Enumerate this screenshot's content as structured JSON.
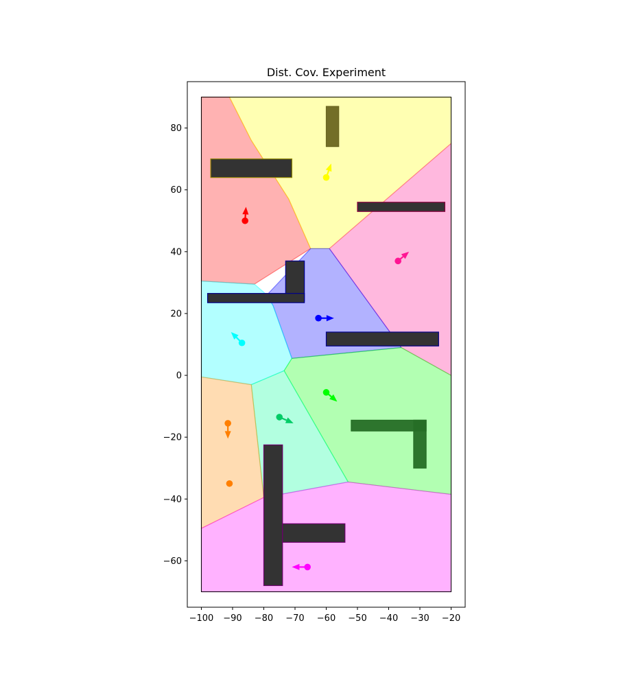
{
  "chart_data": {
    "type": "scatter",
    "title": "Dist. Cov. Experiment",
    "xlabel": "",
    "ylabel": "",
    "xlim": [
      -104.5,
      -15.5
    ],
    "ylim": [
      -75,
      95
    ],
    "xticks": [
      -100,
      -90,
      -80,
      -70,
      -60,
      -50,
      -40,
      -30,
      -20
    ],
    "yticks": [
      -60,
      -40,
      -20,
      0,
      20,
      40,
      60,
      80
    ],
    "x_tick_labels": [
      "−100",
      "−90",
      "−80",
      "−70",
      "−60",
      "−50",
      "−40",
      "−30",
      "−20"
    ],
    "y_tick_labels": [
      "−60",
      "−40",
      "−20",
      "0",
      "20",
      "40",
      "60",
      "80"
    ],
    "grid": false,
    "legend": "none",
    "boundary": [
      [
        -100,
        -70
      ],
      [
        -20,
        -70
      ],
      [
        -20,
        90
      ],
      [
        -100,
        90
      ]
    ],
    "regions": [
      {
        "color": "#ff0000",
        "agent": "red",
        "points": [
          [
            -100,
            90
          ],
          [
            -91,
            90
          ],
          [
            -84,
            76
          ],
          [
            -72,
            57
          ],
          [
            -65,
            41
          ],
          [
            -83,
            29.5
          ],
          [
            -100,
            30.5
          ]
        ]
      },
      {
        "color": "#ffff00",
        "agent": "yellow",
        "points": [
          [
            -91,
            90
          ],
          [
            -20,
            90
          ],
          [
            -20,
            75
          ],
          [
            -59,
            41
          ],
          [
            -65,
            41
          ],
          [
            -72,
            57
          ],
          [
            -84,
            76
          ]
        ]
      },
      {
        "color": "#ff1493",
        "agent": "pink",
        "points": [
          [
            -20,
            75
          ],
          [
            -20,
            0
          ],
          [
            -36,
            9
          ],
          [
            -59,
            41
          ]
        ]
      },
      {
        "color": "#0000ff",
        "agent": "blue",
        "points": [
          [
            -65,
            41
          ],
          [
            -59,
            41
          ],
          [
            -36,
            9
          ],
          [
            -71,
            5.5
          ],
          [
            -77,
            22.5
          ],
          [
            -79,
            26
          ]
        ]
      },
      {
        "color": "#00ffff",
        "agent": "cyan",
        "points": [
          [
            -100,
            30.5
          ],
          [
            -83,
            29.5
          ],
          [
            -79,
            26
          ],
          [
            -77,
            22.5
          ],
          [
            -71,
            5.5
          ],
          [
            -73.5,
            1.5
          ],
          [
            -84,
            -3
          ],
          [
            -100,
            -0.5
          ]
        ]
      },
      {
        "color": "#00ff00",
        "agent": "green",
        "points": [
          [
            -73.5,
            1.5
          ],
          [
            -71,
            5.5
          ],
          [
            -36,
            9
          ],
          [
            -20,
            0
          ],
          [
            -20,
            -38.5
          ],
          [
            -53,
            -34.5
          ]
        ]
      },
      {
        "color": "#00ff99",
        "agent": "spring-green",
        "points": [
          [
            -84,
            -3
          ],
          [
            -73.5,
            1.5
          ],
          [
            -53,
            -34.5
          ],
          [
            -80,
            -39.5
          ]
        ]
      },
      {
        "color": "#ff8c00",
        "agent": "orange",
        "points": [
          [
            -100,
            -0.5
          ],
          [
            -84,
            -3
          ],
          [
            -80,
            -39.5
          ],
          [
            -100,
            -49.5
          ]
        ]
      },
      {
        "color": "#ff00ff",
        "agent": "magenta",
        "points": [
          [
            -100,
            -49.5
          ],
          [
            -80,
            -39.5
          ],
          [
            -53,
            -34.5
          ],
          [
            -20,
            -38.5
          ],
          [
            -20,
            -70
          ],
          [
            -100,
            -70
          ]
        ]
      }
    ],
    "obstacles": [
      {
        "x": [
          -97,
          -71
        ],
        "y": [
          64,
          70
        ],
        "edge": "#8b8000"
      },
      {
        "x": [
          -60,
          -56
        ],
        "y": [
          74,
          87
        ],
        "fill": "#6b6620"
      },
      {
        "x": [
          -50,
          -22
        ],
        "y": [
          53,
          56
        ],
        "edge": "#8b0040"
      },
      {
        "x": [
          -73,
          -67
        ],
        "y": [
          24,
          37
        ],
        "edge": "#00008b"
      },
      {
        "x": [
          -98,
          -67
        ],
        "y": [
          23.5,
          26.5
        ],
        "edge": "#00008b"
      },
      {
        "x": [
          -60,
          -24
        ],
        "y": [
          9.5,
          14
        ],
        "edge": "#00008b"
      },
      {
        "x": [
          -52,
          -28
        ],
        "y": [
          -18,
          -14.5
        ],
        "fill": "#266e26"
      },
      {
        "x": [
          -32,
          -28
        ],
        "y": [
          -30,
          -14.5
        ],
        "fill": "#266e26"
      },
      {
        "x": [
          -80,
          -74
        ],
        "y": [
          -68,
          -22.5
        ],
        "edge": "#6b006b"
      },
      {
        "x": [
          -74,
          -54
        ],
        "y": [
          -54,
          -48
        ],
        "edge": "#6b006b"
      }
    ],
    "agents": [
      {
        "name": "red",
        "color": "#ff0000",
        "x": -86,
        "y": 50,
        "dx": 0.3,
        "dy": 4.5
      },
      {
        "name": "yellow",
        "color": "#ffff00",
        "x": -60,
        "y": 64,
        "dx": 1.6,
        "dy": 4.5
      },
      {
        "name": "pink",
        "color": "#ff1493",
        "x": -37,
        "y": 37,
        "dx": 3.5,
        "dy": 3
      },
      {
        "name": "blue",
        "color": "#0000ff",
        "x": -62.5,
        "y": 18.5,
        "dx": 5,
        "dy": 0
      },
      {
        "name": "cyan",
        "color": "#00ffff",
        "x": -87,
        "y": 10.5,
        "dx": -3.5,
        "dy": 3.5
      },
      {
        "name": "green",
        "color": "#00ff00",
        "x": -60,
        "y": -5.5,
        "dx": 3.5,
        "dy": -3
      },
      {
        "name": "spring-green",
        "color": "#00cc66",
        "x": -75,
        "y": -13.5,
        "dx": 4.5,
        "dy": -2
      },
      {
        "name": "orange",
        "color": "#ff7f00",
        "x": -91.5,
        "y": -15.5,
        "dx": 0,
        "dy": -5
      },
      {
        "name": "orange-2",
        "color": "#ff7f00",
        "x": -91,
        "y": -35,
        "dx": 0,
        "dy": 0
      },
      {
        "name": "magenta",
        "color": "#ff00ff",
        "x": -66,
        "y": -62,
        "dx": -5,
        "dy": 0
      }
    ]
  }
}
